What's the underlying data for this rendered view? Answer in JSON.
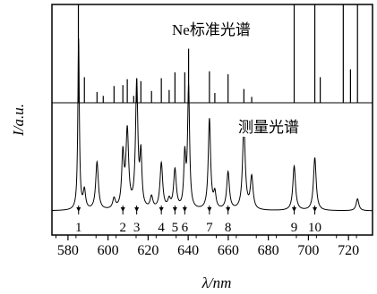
{
  "chart_data": {
    "type": "line",
    "xlabel": "λ/nm",
    "ylabel": "I/a.u.",
    "xlim": [
      572,
      732
    ],
    "xticks": [
      580,
      600,
      620,
      640,
      660,
      680,
      700,
      720
    ],
    "series": [
      {
        "name": "Ne标准光谱",
        "style": "stick",
        "lines": [
          [
            585.2,
            1.15
          ],
          [
            588.2,
            0.26
          ],
          [
            594.5,
            0.11
          ],
          [
            597.6,
            0.07
          ],
          [
            603.0,
            0.17
          ],
          [
            607.4,
            0.18
          ],
          [
            609.6,
            0.24
          ],
          [
            612.8,
            0.07
          ],
          [
            614.3,
            0.25
          ],
          [
            616.4,
            0.22
          ],
          [
            621.7,
            0.12
          ],
          [
            626.6,
            0.25
          ],
          [
            630.5,
            0.13
          ],
          [
            633.4,
            0.31
          ],
          [
            638.3,
            0.31
          ],
          [
            640.2,
            0.55
          ],
          [
            650.6,
            0.32
          ],
          [
            653.3,
            0.1
          ],
          [
            659.9,
            0.29
          ],
          [
            667.8,
            0.14
          ],
          [
            671.7,
            0.06
          ],
          [
            692.9,
            1.15
          ],
          [
            703.2,
            1.15
          ],
          [
            705.9,
            0.26
          ],
          [
            717.4,
            1.15
          ],
          [
            721.0,
            0.34
          ],
          [
            724.5,
            1.15
          ]
        ]
      },
      {
        "name": "测量光谱",
        "style": "line",
        "peaks": [
          [
            585.3,
            1.0,
            0.45
          ],
          [
            588.2,
            0.11,
            0.7
          ],
          [
            594.5,
            0.28,
            0.8
          ],
          [
            603.0,
            0.06,
            0.8
          ],
          [
            607.4,
            0.31,
            0.7
          ],
          [
            609.6,
            0.45,
            0.8
          ],
          [
            614.3,
            0.73,
            0.7
          ],
          [
            616.4,
            0.3,
            0.6
          ],
          [
            621.7,
            0.07,
            0.8
          ],
          [
            626.6,
            0.27,
            0.8
          ],
          [
            630.5,
            0.05,
            0.8
          ],
          [
            633.4,
            0.23,
            0.8
          ],
          [
            638.3,
            0.3,
            0.6
          ],
          [
            640.2,
            0.71,
            0.6
          ],
          [
            650.6,
            0.53,
            0.7
          ],
          [
            653.3,
            0.09,
            0.7
          ],
          [
            659.9,
            0.22,
            0.8
          ],
          [
            667.8,
            0.49,
            0.8
          ],
          [
            671.7,
            0.19,
            0.8
          ],
          [
            692.9,
            0.26,
            0.8
          ],
          [
            703.2,
            0.31,
            0.8
          ],
          [
            724.5,
            0.07,
            0.8
          ]
        ]
      }
    ],
    "marks": [
      {
        "label": "1",
        "x": 585.3
      },
      {
        "label": "2",
        "x": 607.4
      },
      {
        "label": "3",
        "x": 614.3
      },
      {
        "label": "4",
        "x": 626.6
      },
      {
        "label": "5",
        "x": 633.4
      },
      {
        "label": "6",
        "x": 638.3
      },
      {
        "label": "7",
        "x": 650.6
      },
      {
        "label": "8",
        "x": 659.9
      },
      {
        "label": "9",
        "x": 692.9
      },
      {
        "label": "10",
        "x": 703.2
      }
    ],
    "grid": false
  }
}
